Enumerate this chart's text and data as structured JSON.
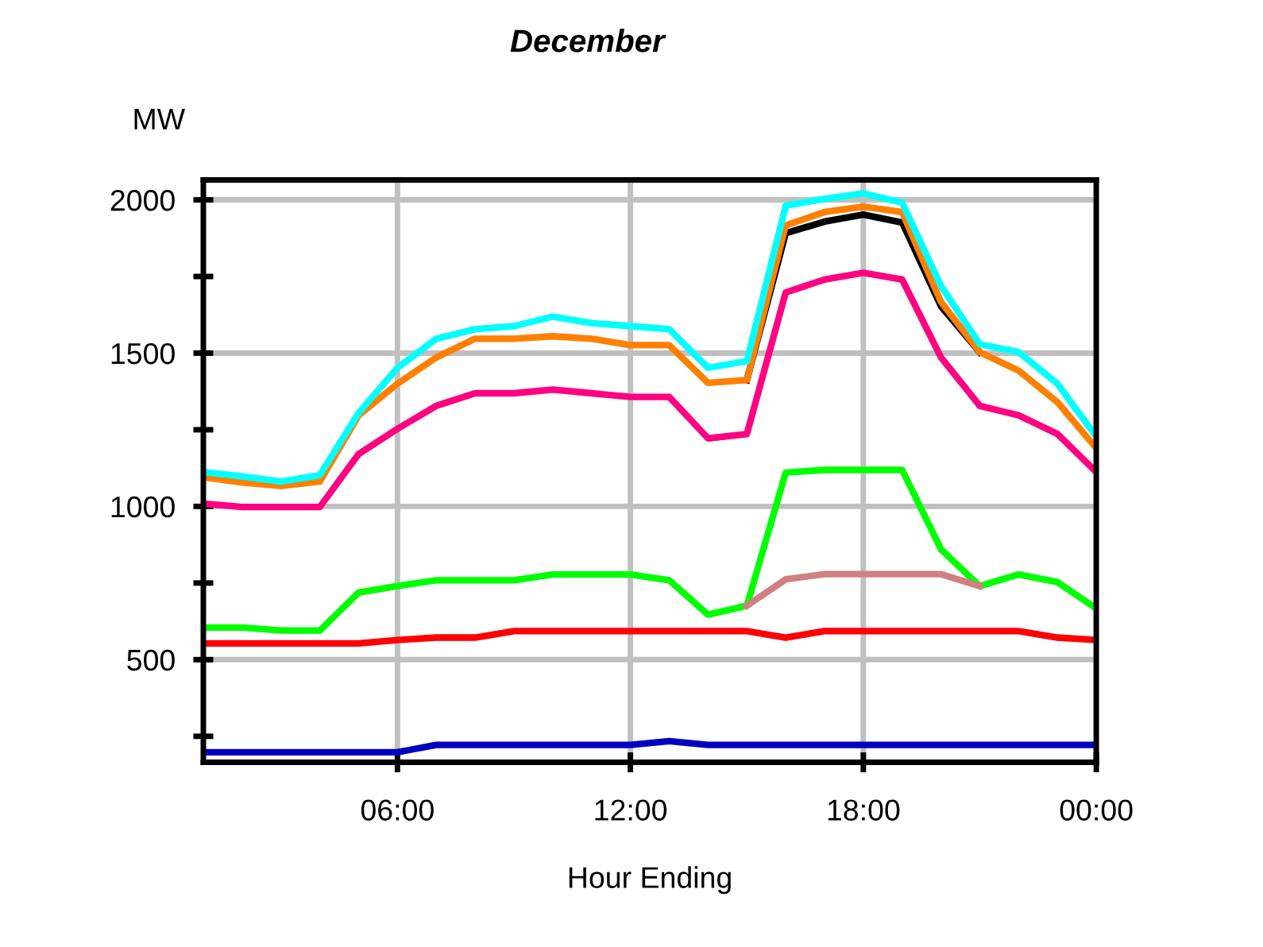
{
  "chart_data": {
    "type": "line",
    "title": "December",
    "ylabel": "MW",
    "xlabel": "Hour Ending",
    "x": [
      1,
      2,
      3,
      4,
      5,
      6,
      7,
      8,
      9,
      10,
      11,
      12,
      13,
      14,
      15,
      16,
      17,
      18,
      19,
      20,
      21,
      22,
      23,
      24
    ],
    "xlim": [
      1,
      24
    ],
    "xticks": [
      {
        "value": 6,
        "label": "06:00"
      },
      {
        "value": 12,
        "label": "12:00"
      },
      {
        "value": 18,
        "label": "18:00"
      },
      {
        "value": 24,
        "label": "00:00"
      }
    ],
    "ylim": [
      165,
      2065
    ],
    "yticks": [
      {
        "value": 250,
        "label": null
      },
      500,
      {
        "value": 750,
        "label": null
      },
      1000,
      {
        "value": 1250,
        "label": null
      },
      1500,
      {
        "value": 1750,
        "label": null
      },
      2000
    ],
    "grid": true,
    "marker": "none",
    "line_style": "solid",
    "series": [
      {
        "color": "#0000c0",
        "values": [
          198,
          198,
          198,
          198,
          198,
          198,
          222,
          222,
          222,
          222,
          222,
          222,
          234,
          222,
          222,
          222,
          222,
          222,
          222,
          222,
          222,
          222,
          222,
          222
        ]
      },
      {
        "color": "#ff0000",
        "values": [
          553,
          553,
          553,
          553,
          553,
          564,
          572,
          572,
          593,
          593,
          593,
          593,
          593,
          593,
          593,
          572,
          593,
          593,
          593,
          593,
          593,
          593,
          572,
          564
        ]
      },
      {
        "color": "#00ff00",
        "values": [
          605,
          605,
          595,
          595,
          719,
          740,
          759,
          759,
          759,
          778,
          778,
          778,
          759,
          647,
          676,
          1110,
          1119,
          1119,
          1119,
          860,
          740,
          778,
          753,
          667
        ]
      },
      {
        "color": "#d08080",
        "values": [
          null,
          null,
          null,
          null,
          null,
          null,
          null,
          null,
          null,
          null,
          null,
          null,
          null,
          null,
          676,
          762,
          779,
          779,
          779,
          779,
          740,
          null,
          null,
          null
        ]
      },
      {
        "color": "#ff0080",
        "values": [
          1009,
          998,
          998,
          998,
          1171,
          1253,
          1328,
          1369,
          1369,
          1381,
          1369,
          1357,
          1357,
          1222,
          1236,
          1698,
          1740,
          1762,
          1740,
          1486,
          1328,
          1297,
          1236,
          1112
        ]
      },
      {
        "color": "#000000",
        "values": [
          null,
          null,
          null,
          null,
          null,
          null,
          null,
          null,
          null,
          null,
          null,
          null,
          null,
          null,
          1412,
          1891,
          1929,
          1952,
          1926,
          1653,
          1503,
          null,
          null,
          null
        ]
      },
      {
        "color": "#ff8000",
        "values": [
          1095,
          1078,
          1067,
          1081,
          1297,
          1400,
          1486,
          1547,
          1547,
          1555,
          1547,
          1526,
          1526,
          1403,
          1412,
          1917,
          1960,
          1978,
          1960,
          1667,
          1503,
          1443,
          1340,
          1190
        ]
      },
      {
        "color": "#00ffff",
        "values": [
          1112,
          1098,
          1081,
          1102,
          1305,
          1452,
          1547,
          1578,
          1588,
          1619,
          1598,
          1588,
          1578,
          1452,
          1474,
          1981,
          2003,
          2021,
          1991,
          1719,
          1529,
          1503,
          1400,
          1228
        ]
      }
    ]
  }
}
